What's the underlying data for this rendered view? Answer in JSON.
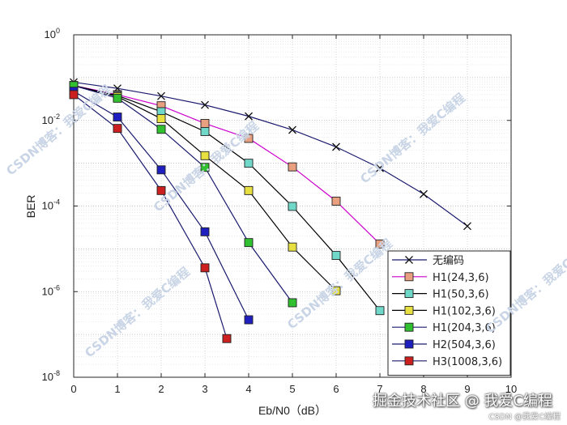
{
  "chart_data": {
    "type": "line",
    "xlabel": "Eb/N0（dB）",
    "ylabel": "BER",
    "xlim": [
      0,
      10
    ],
    "ylim": [
      1e-08,
      1
    ],
    "yscale": "log",
    "grid": true,
    "legend_position": "bottom-right",
    "x_ticks": [
      "0",
      "1",
      "2",
      "3",
      "4",
      "5",
      "6",
      "7",
      "8",
      "9",
      "10"
    ],
    "y_ticks": [
      {
        "base": "10",
        "exp": "-8",
        "value": 1e-08
      },
      {
        "base": "10",
        "exp": "-6",
        "value": 1e-06
      },
      {
        "base": "10",
        "exp": "-4",
        "value": 0.0001
      },
      {
        "base": "10",
        "exp": "-2",
        "value": 0.01
      },
      {
        "base": "10",
        "exp": "0",
        "value": 1
      }
    ],
    "series": [
      {
        "name": "无编码",
        "marker": "x",
        "line_color": "#1a1a6e",
        "fill": "none",
        "x": [
          0,
          1,
          2,
          3,
          4,
          5,
          6,
          7,
          8,
          9
        ],
        "y": [
          0.078,
          0.056,
          0.037,
          0.023,
          0.0125,
          0.006,
          0.0024,
          0.00077,
          0.00019,
          3.4e-05
        ]
      },
      {
        "name": "H1(24,3,6)",
        "marker": "square",
        "line_color": "#cc00cc",
        "fill": "#e8a080",
        "x": [
          0,
          1,
          2,
          3,
          4,
          5,
          6,
          7
        ],
        "y": [
          0.065,
          0.04,
          0.022,
          0.0085,
          0.0038,
          0.00082,
          0.00013,
          1.3e-05
        ]
      },
      {
        "name": "H1(50,3,6)",
        "marker": "square",
        "line_color": "#000000",
        "fill": "#70d8c8",
        "x": [
          0,
          1,
          2,
          3,
          4,
          5,
          6,
          7
        ],
        "y": [
          0.065,
          0.038,
          0.016,
          0.0055,
          0.001,
          9.8e-05,
          7e-06,
          3.6e-07
        ]
      },
      {
        "name": "H1(102,3,6)",
        "marker": "square",
        "line_color": "#000000",
        "fill": "#e8e040",
        "x": [
          0,
          1,
          2,
          3,
          4,
          5,
          6
        ],
        "y": [
          0.065,
          0.036,
          0.011,
          0.0015,
          0.00023,
          1.1e-05,
          1.05e-06
        ]
      },
      {
        "name": "H1(204,3,6)",
        "marker": "square",
        "line_color": "#1a1a6e",
        "fill": "#30c030",
        "x": [
          0,
          1,
          2,
          3,
          4,
          5
        ],
        "y": [
          0.065,
          0.033,
          0.0062,
          0.0008,
          1.4e-05,
          5.5e-07
        ]
      },
      {
        "name": "H2(504,3,6)",
        "marker": "square",
        "line_color": "#1a1a6e",
        "fill": "#1f1fc0",
        "x": [
          0,
          1,
          2,
          3,
          4
        ],
        "y": [
          0.048,
          0.012,
          0.0007,
          2.5e-05,
          2.2e-07
        ]
      },
      {
        "name": "H3(1008,3,6)",
        "marker": "square",
        "line_color": "#1a1a6e",
        "fill": "#cc2020",
        "x": [
          0,
          1,
          2,
          3,
          3.5
        ],
        "y": [
          0.04,
          0.0065,
          0.00023,
          3.6e-06,
          8e-08
        ]
      }
    ]
  },
  "watermark": {
    "text": "CSDN博客：我爱C编程"
  },
  "footer": {
    "main": "掘金技术社区 @ 我爱C编程",
    "sub": "CSDN @我爱C编程"
  }
}
